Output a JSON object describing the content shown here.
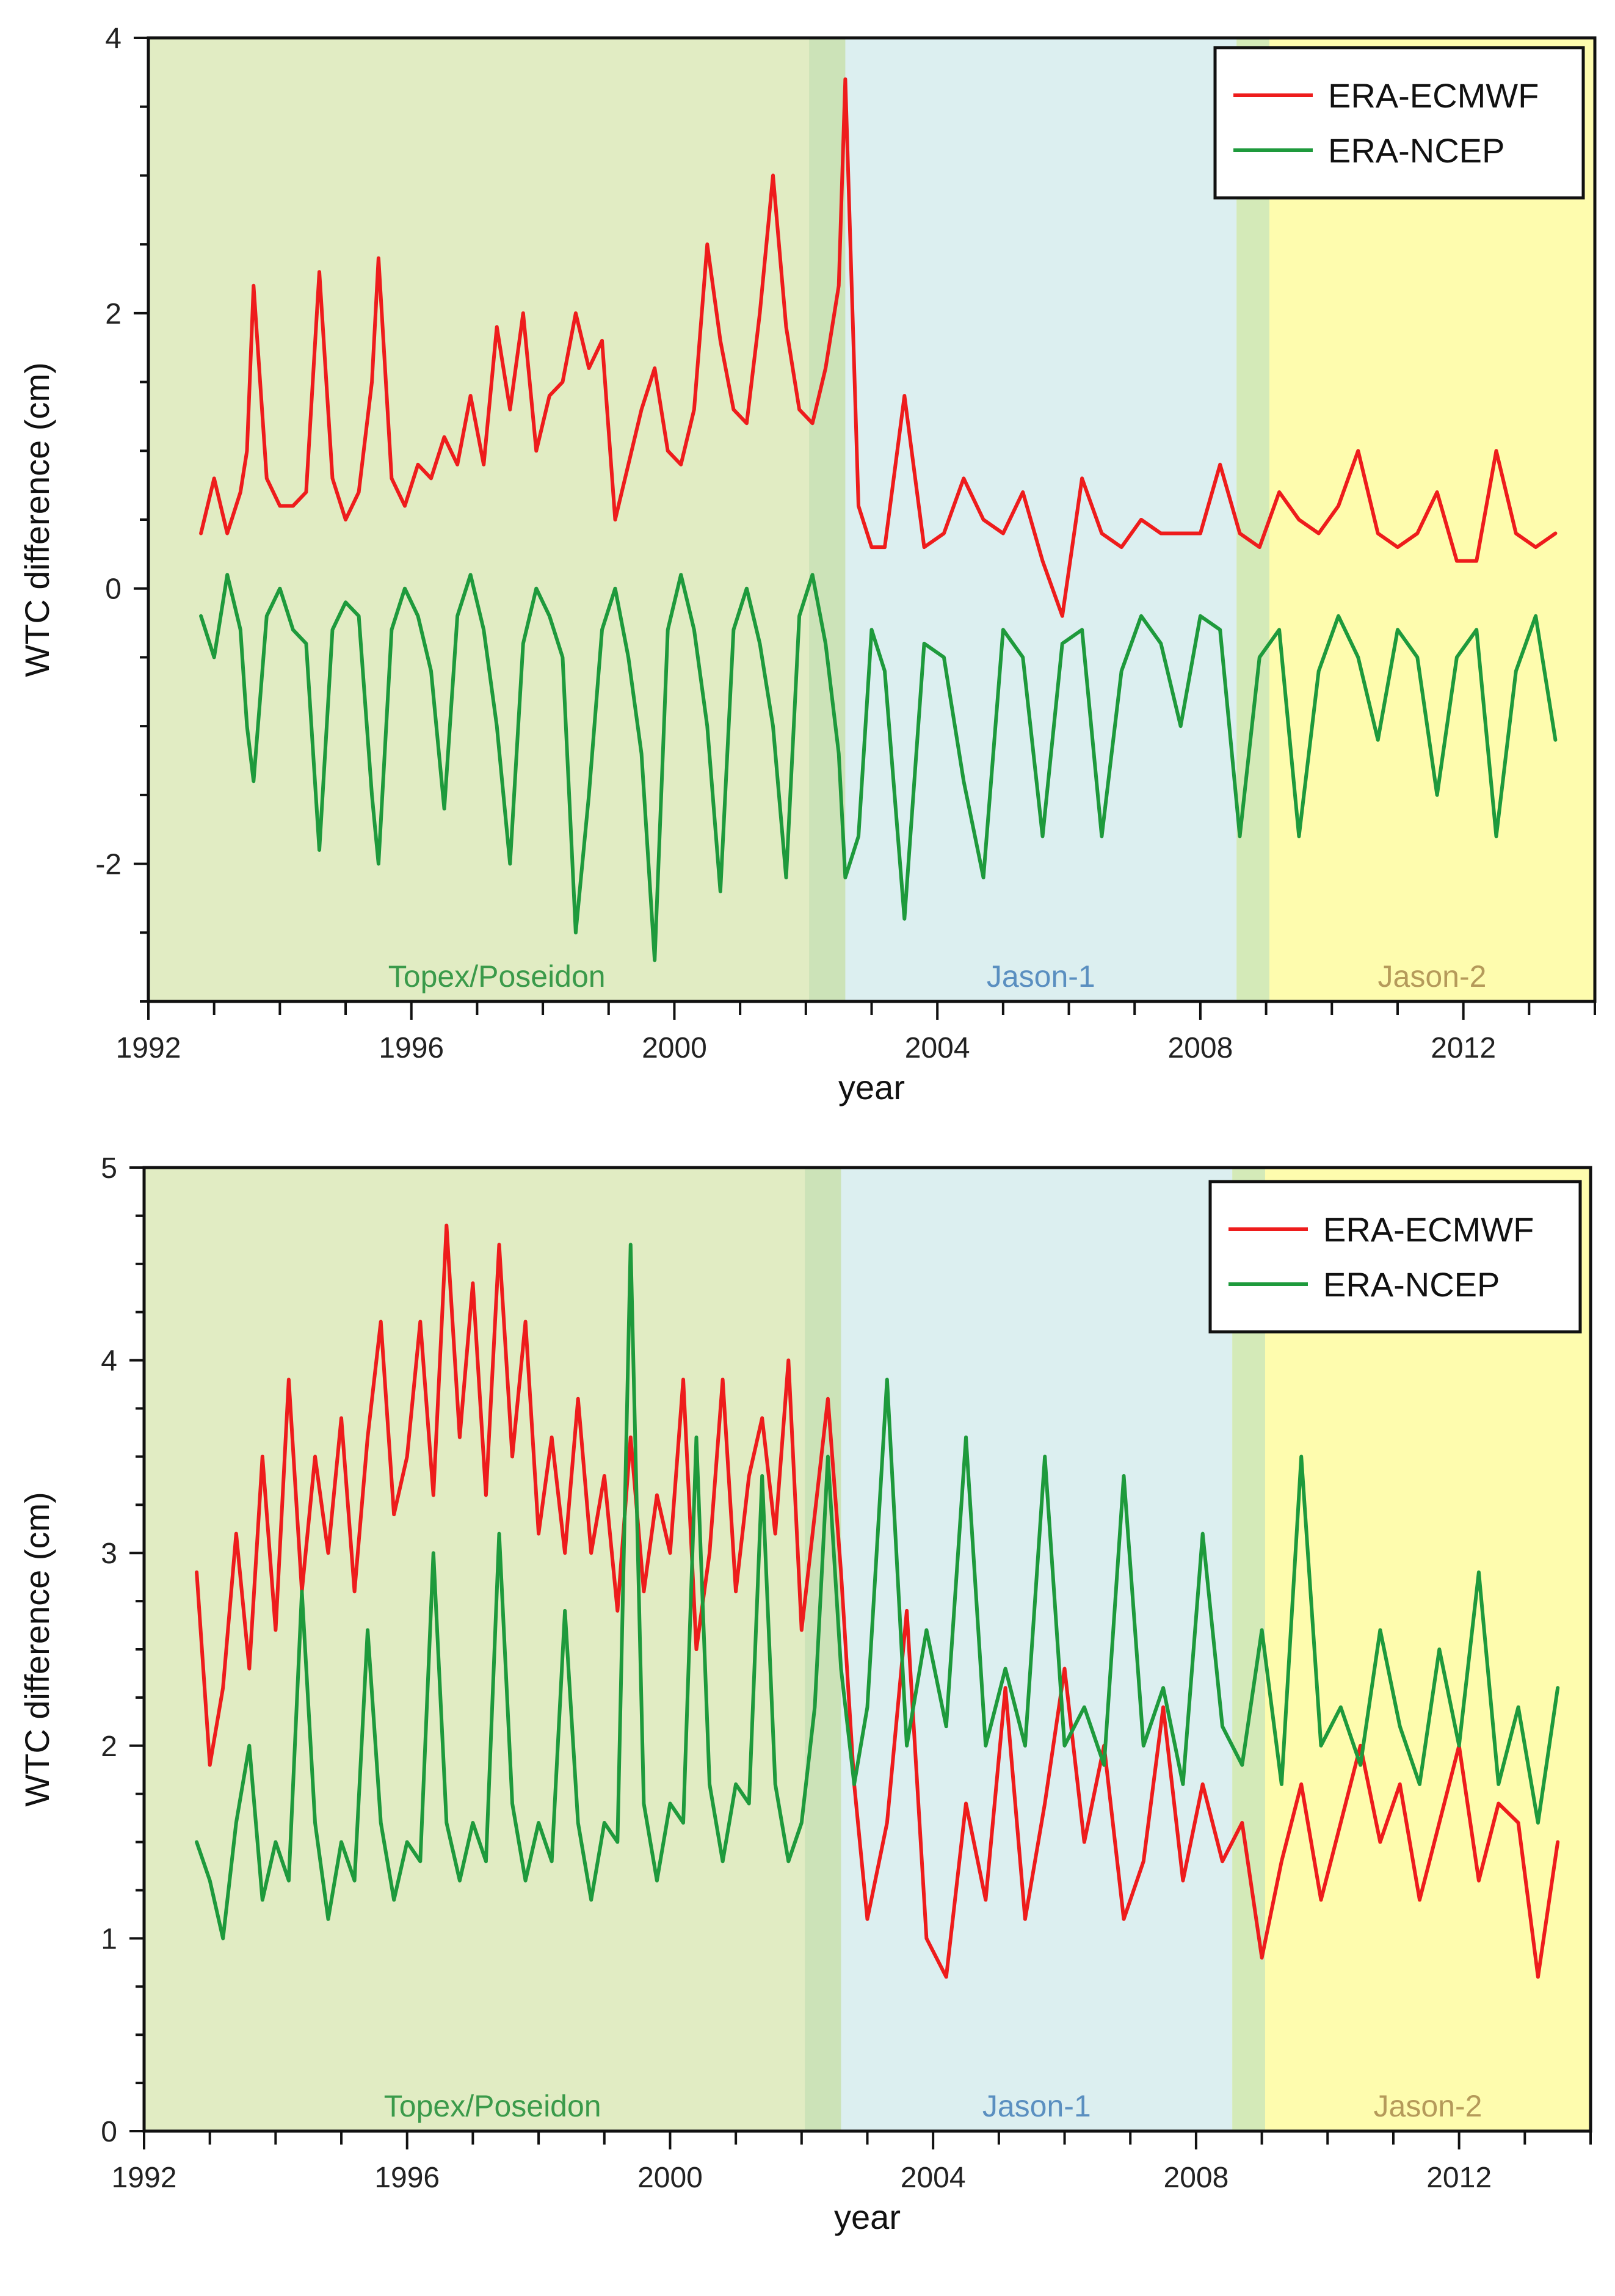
{
  "charts": [
    {
      "title": "",
      "xlabel": "year",
      "ylabel": "WTC difference (cm)",
      "xlim": [
        1992,
        2014
      ],
      "ylim": [
        -3,
        4
      ],
      "yticks": [
        -2,
        0,
        2,
        4
      ],
      "ytick_labels": [
        "-2",
        "0",
        "2",
        "4"
      ],
      "xticks": [
        1992,
        1996,
        2000,
        2004,
        2008,
        2012
      ],
      "xtick_labels": [
        "1992",
        "1996",
        "2000",
        "2004",
        "2008",
        "2012"
      ],
      "missions": [
        {
          "name": "Topex/Poseidon",
          "start": 1992,
          "end": 2002.6,
          "fill": "#e1ecc3",
          "text_color": "#3a9a4a"
        },
        {
          "name": "",
          "start": 2002.05,
          "end": 2002.6,
          "fill": "#cce3b8",
          "text_color": "#3a9a4a"
        },
        {
          "name": "Jason-1",
          "start": 2002.6,
          "end": 2008.55,
          "fill": "#dceff0",
          "text_color": "#5a8fc0"
        },
        {
          "name": "",
          "start": 2008.55,
          "end": 2009.05,
          "fill": "#d4eab8",
          "text_color": "#3a9a4a"
        },
        {
          "name": "Jason-2",
          "start": 2009.05,
          "end": 2014,
          "fill": "#fefcae",
          "text_color": "#b59a5a"
        }
      ],
      "legend": [
        {
          "label": "ERA-ECMWF",
          "color": "#ee1c1c"
        },
        {
          "label": "ERA-NCEP",
          "color": "#1e9a3c"
        }
      ]
    },
    {
      "title": "",
      "xlabel": "year",
      "ylabel": "WTC difference (cm)",
      "xlim": [
        1992,
        2014
      ],
      "ylim": [
        0,
        5
      ],
      "yticks": [
        0,
        1,
        2,
        3,
        4,
        5
      ],
      "ytick_labels": [
        "0",
        "1",
        "2",
        "3",
        "4",
        "5"
      ],
      "xticks": [
        1992,
        1996,
        2000,
        2004,
        2008,
        2012
      ],
      "xtick_labels": [
        "1992",
        "1996",
        "2000",
        "2004",
        "2008",
        "2012"
      ],
      "missions": [
        {
          "name": "Topex/Poseidon",
          "start": 1992,
          "end": 2002.6,
          "fill": "#e1ecc3",
          "text_color": "#3a9a4a"
        },
        {
          "name": "",
          "start": 2002.05,
          "end": 2002.6,
          "fill": "#cce3b8",
          "text_color": "#3a9a4a"
        },
        {
          "name": "Jason-1",
          "start": 2002.6,
          "end": 2008.55,
          "fill": "#dceff0",
          "text_color": "#5a8fc0"
        },
        {
          "name": "",
          "start": 2008.55,
          "end": 2009.05,
          "fill": "#d4eab8",
          "text_color": "#3a9a4a"
        },
        {
          "name": "Jason-2",
          "start": 2009.05,
          "end": 2014,
          "fill": "#fefcae",
          "text_color": "#b59a5a"
        }
      ],
      "legend": [
        {
          "label": "ERA-ECMWF",
          "color": "#ee1c1c"
        },
        {
          "label": "ERA-NCEP",
          "color": "#1e9a3c"
        }
      ]
    }
  ],
  "chart_data": [
    {
      "type": "line",
      "title": "",
      "xlabel": "year",
      "ylabel": "WTC difference (cm)",
      "xlim": [
        1992,
        2014
      ],
      "ylim": [
        -3,
        4
      ],
      "series": [
        {
          "name": "ERA-ECMWF",
          "color": "#ee1c1c",
          "x": [
            1992.8,
            1993.0,
            1993.2,
            1993.4,
            1993.5,
            1993.6,
            1993.8,
            1994.0,
            1994.2,
            1994.4,
            1994.6,
            1994.8,
            1995.0,
            1995.2,
            1995.4,
            1995.5,
            1995.7,
            1995.9,
            1996.1,
            1996.3,
            1996.5,
            1996.7,
            1996.9,
            1997.1,
            1997.3,
            1997.5,
            1997.7,
            1997.9,
            1998.1,
            1998.3,
            1998.5,
            1998.7,
            1998.9,
            1999.1,
            1999.3,
            1999.5,
            1999.7,
            1999.9,
            2000.1,
            2000.3,
            2000.5,
            2000.7,
            2000.9,
            2001.1,
            2001.3,
            2001.5,
            2001.7,
            2001.9,
            2002.1,
            2002.3,
            2002.5,
            2002.6,
            2002.8,
            2003.0,
            2003.2,
            2003.5,
            2003.8,
            2004.1,
            2004.4,
            2004.7,
            2005.0,
            2005.3,
            2005.6,
            2005.9,
            2006.2,
            2006.5,
            2006.8,
            2007.1,
            2007.4,
            2007.7,
            2008.0,
            2008.3,
            2008.6,
            2008.9,
            2009.2,
            2009.5,
            2009.8,
            2010.1,
            2010.4,
            2010.7,
            2011.0,
            2011.3,
            2011.6,
            2011.9,
            2012.2,
            2012.5,
            2012.8,
            2013.1,
            2013.4
          ],
          "y": [
            0.4,
            0.8,
            0.4,
            0.7,
            1.0,
            2.2,
            0.8,
            0.6,
            0.6,
            0.7,
            2.3,
            0.8,
            0.5,
            0.7,
            1.5,
            2.4,
            0.8,
            0.6,
            0.9,
            0.8,
            1.1,
            0.9,
            1.4,
            0.9,
            1.9,
            1.3,
            2.0,
            1.0,
            1.4,
            1.5,
            2.0,
            1.6,
            1.8,
            0.5,
            0.9,
            1.3,
            1.6,
            1.0,
            0.9,
            1.3,
            2.5,
            1.8,
            1.3,
            1.2,
            2.0,
            3.0,
            1.9,
            1.3,
            1.2,
            1.6,
            2.2,
            3.7,
            0.6,
            0.3,
            0.3,
            1.4,
            0.3,
            0.4,
            0.8,
            0.5,
            0.4,
            0.7,
            0.2,
            -0.2,
            0.8,
            0.4,
            0.3,
            0.5,
            0.4,
            0.4,
            0.4,
            0.9,
            0.4,
            0.3,
            0.7,
            0.5,
            0.4,
            0.6,
            1.0,
            0.4,
            0.3,
            0.4,
            0.7,
            0.2,
            0.2,
            1.0,
            0.4,
            0.3,
            0.4
          ]
        },
        {
          "name": "ERA-NCEP",
          "color": "#1e9a3c",
          "x": [
            1992.8,
            1993.0,
            1993.2,
            1993.4,
            1993.5,
            1993.6,
            1993.8,
            1994.0,
            1994.2,
            1994.4,
            1994.6,
            1994.8,
            1995.0,
            1995.2,
            1995.4,
            1995.5,
            1995.7,
            1995.9,
            1996.1,
            1996.3,
            1996.5,
            1996.7,
            1996.9,
            1997.1,
            1997.3,
            1997.5,
            1997.7,
            1997.9,
            1998.1,
            1998.3,
            1998.5,
            1998.7,
            1998.9,
            1999.1,
            1999.3,
            1999.5,
            1999.7,
            1999.9,
            2000.1,
            2000.3,
            2000.5,
            2000.7,
            2000.9,
            2001.1,
            2001.3,
            2001.5,
            2001.7,
            2001.9,
            2002.1,
            2002.3,
            2002.5,
            2002.6,
            2002.8,
            2003.0,
            2003.2,
            2003.5,
            2003.8,
            2004.1,
            2004.4,
            2004.7,
            2005.0,
            2005.3,
            2005.6,
            2005.9,
            2006.2,
            2006.5,
            2006.8,
            2007.1,
            2007.4,
            2007.7,
            2008.0,
            2008.3,
            2008.6,
            2008.9,
            2009.2,
            2009.5,
            2009.8,
            2010.1,
            2010.4,
            2010.7,
            2011.0,
            2011.3,
            2011.6,
            2011.9,
            2012.2,
            2012.5,
            2012.8,
            2013.1,
            2013.4
          ],
          "y": [
            -0.2,
            -0.5,
            0.1,
            -0.3,
            -1.0,
            -1.4,
            -0.2,
            0.0,
            -0.3,
            -0.4,
            -1.9,
            -0.3,
            -0.1,
            -0.2,
            -1.5,
            -2.0,
            -0.3,
            0.0,
            -0.2,
            -0.6,
            -1.6,
            -0.2,
            0.1,
            -0.3,
            -1.0,
            -2.0,
            -0.4,
            0.0,
            -0.2,
            -0.5,
            -2.5,
            -1.5,
            -0.3,
            0.0,
            -0.5,
            -1.2,
            -2.7,
            -0.3,
            0.1,
            -0.3,
            -1.0,
            -2.2,
            -0.3,
            0.0,
            -0.4,
            -1.0,
            -2.1,
            -0.2,
            0.1,
            -0.4,
            -1.2,
            -2.1,
            -1.8,
            -0.3,
            -0.6,
            -2.4,
            -0.4,
            -0.5,
            -1.4,
            -2.1,
            -0.3,
            -0.5,
            -1.8,
            -0.4,
            -0.3,
            -1.8,
            -0.6,
            -0.2,
            -0.4,
            -1.0,
            -0.2,
            -0.3,
            -1.8,
            -0.5,
            -0.3,
            -1.8,
            -0.6,
            -0.2,
            -0.5,
            -1.1,
            -0.3,
            -0.5,
            -1.5,
            -0.5,
            -0.3,
            -1.8,
            -0.6,
            -0.2,
            -1.1
          ]
        }
      ]
    },
    {
      "type": "line",
      "title": "",
      "xlabel": "year",
      "ylabel": "WTC difference (cm)",
      "xlim": [
        1992,
        2014
      ],
      "ylim": [
        0,
        5
      ],
      "series": [
        {
          "name": "ERA-ECMWF",
          "color": "#ee1c1c",
          "x": [
            1992.8,
            1993.0,
            1993.2,
            1993.4,
            1993.6,
            1993.8,
            1994.0,
            1994.2,
            1994.4,
            1994.6,
            1994.8,
            1995.0,
            1995.2,
            1995.4,
            1995.6,
            1995.8,
            1996.0,
            1996.2,
            1996.4,
            1996.6,
            1996.8,
            1997.0,
            1997.2,
            1997.4,
            1997.6,
            1997.8,
            1998.0,
            1998.2,
            1998.4,
            1998.6,
            1998.8,
            1999.0,
            1999.2,
            1999.4,
            1999.6,
            1999.8,
            2000.0,
            2000.2,
            2000.4,
            2000.6,
            2000.8,
            2001.0,
            2001.2,
            2001.4,
            2001.6,
            2001.8,
            2002.0,
            2002.2,
            2002.4,
            2002.6,
            2002.8,
            2003.0,
            2003.3,
            2003.6,
            2003.9,
            2004.2,
            2004.5,
            2004.8,
            2005.1,
            2005.4,
            2005.7,
            2006.0,
            2006.3,
            2006.6,
            2006.9,
            2007.2,
            2007.5,
            2007.8,
            2008.1,
            2008.4,
            2008.7,
            2009.0,
            2009.3,
            2009.6,
            2009.9,
            2010.2,
            2010.5,
            2010.8,
            2011.1,
            2011.4,
            2011.7,
            2012.0,
            2012.3,
            2012.6,
            2012.9,
            2013.2,
            2013.5
          ],
          "y": [
            2.9,
            1.9,
            2.3,
            3.1,
            2.4,
            3.5,
            2.6,
            3.9,
            2.8,
            3.5,
            3.0,
            3.7,
            2.8,
            3.6,
            4.2,
            3.2,
            3.5,
            4.2,
            3.3,
            4.7,
            3.6,
            4.4,
            3.3,
            4.6,
            3.5,
            4.2,
            3.1,
            3.6,
            3.0,
            3.8,
            3.0,
            3.4,
            2.7,
            3.6,
            2.8,
            3.3,
            3.0,
            3.9,
            2.5,
            3.0,
            3.9,
            2.8,
            3.4,
            3.7,
            3.1,
            4.0,
            2.6,
            3.2,
            3.8,
            2.9,
            1.8,
            1.1,
            1.6,
            2.7,
            1.0,
            0.8,
            1.7,
            1.2,
            2.3,
            1.1,
            1.7,
            2.4,
            1.5,
            2.0,
            1.1,
            1.4,
            2.2,
            1.3,
            1.8,
            1.4,
            1.6,
            0.9,
            1.4,
            1.8,
            1.2,
            1.6,
            2.0,
            1.5,
            1.8,
            1.2,
            1.6,
            2.0,
            1.3,
            1.7,
            1.6,
            0.8,
            1.5
          ]
        },
        {
          "name": "ERA-NCEP",
          "color": "#1e9a3c",
          "x": [
            1992.8,
            1993.0,
            1993.2,
            1993.4,
            1993.6,
            1993.8,
            1994.0,
            1994.2,
            1994.4,
            1994.6,
            1994.8,
            1995.0,
            1995.2,
            1995.4,
            1995.6,
            1995.8,
            1996.0,
            1996.2,
            1996.4,
            1996.6,
            1996.8,
            1997.0,
            1997.2,
            1997.4,
            1997.6,
            1997.8,
            1998.0,
            1998.2,
            1998.4,
            1998.6,
            1998.8,
            1999.0,
            1999.2,
            1999.4,
            1999.6,
            1999.8,
            2000.0,
            2000.2,
            2000.4,
            2000.6,
            2000.8,
            2001.0,
            2001.2,
            2001.4,
            2001.6,
            2001.8,
            2002.0,
            2002.2,
            2002.4,
            2002.6,
            2002.8,
            2003.0,
            2003.3,
            2003.6,
            2003.9,
            2004.2,
            2004.5,
            2004.8,
            2005.1,
            2005.4,
            2005.7,
            2006.0,
            2006.3,
            2006.6,
            2006.9,
            2007.2,
            2007.5,
            2007.8,
            2008.1,
            2008.4,
            2008.7,
            2009.0,
            2009.3,
            2009.6,
            2009.9,
            2010.2,
            2010.5,
            2010.8,
            2011.1,
            2011.4,
            2011.7,
            2012.0,
            2012.3,
            2012.6,
            2012.9,
            2013.2,
            2013.5
          ],
          "y": [
            1.5,
            1.3,
            1.0,
            1.6,
            2.0,
            1.2,
            1.5,
            1.3,
            2.8,
            1.6,
            1.1,
            1.5,
            1.3,
            2.6,
            1.6,
            1.2,
            1.5,
            1.4,
            3.0,
            1.6,
            1.3,
            1.6,
            1.4,
            3.1,
            1.7,
            1.3,
            1.6,
            1.4,
            2.7,
            1.6,
            1.2,
            1.6,
            1.5,
            4.6,
            1.7,
            1.3,
            1.7,
            1.6,
            3.6,
            1.8,
            1.4,
            1.8,
            1.7,
            3.4,
            1.8,
            1.4,
            1.6,
            2.2,
            3.5,
            2.4,
            1.8,
            2.2,
            3.9,
            2.0,
            2.6,
            2.1,
            3.6,
            2.0,
            2.4,
            2.0,
            3.5,
            2.0,
            2.2,
            1.9,
            3.4,
            2.0,
            2.3,
            1.8,
            3.1,
            2.1,
            1.9,
            2.6,
            1.8,
            3.5,
            2.0,
            2.2,
            1.9,
            2.6,
            2.1,
            1.8,
            2.5,
            2.0,
            2.9,
            1.8,
            2.2,
            1.6,
            2.3
          ]
        }
      ]
    }
  ]
}
